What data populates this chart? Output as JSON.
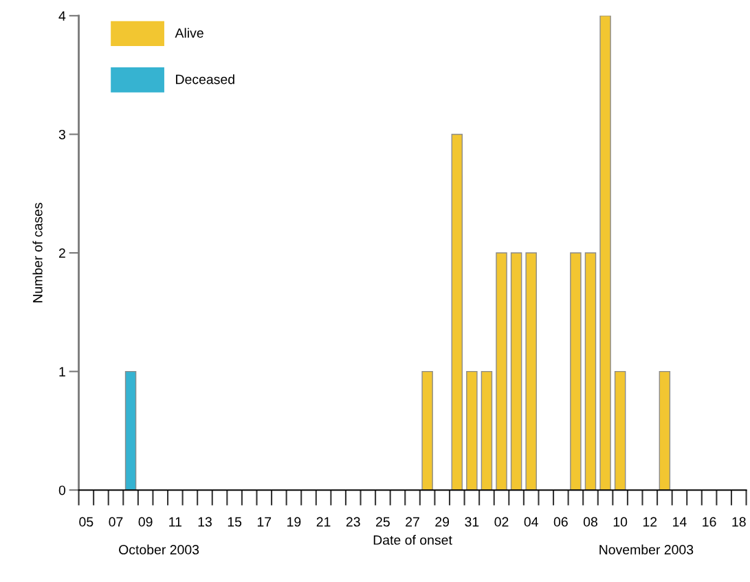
{
  "chart_data": {
    "type": "bar",
    "xlabel": "Date of onset",
    "ylabel": "Number of cases",
    "categories": [
      "05",
      null,
      "07",
      null,
      "09",
      null,
      "11",
      null,
      "13",
      null,
      "15",
      null,
      "17",
      null,
      "19",
      null,
      "21",
      null,
      "23",
      null,
      "25",
      null,
      "27",
      null,
      "29",
      null,
      "31",
      null,
      "02",
      null,
      "04",
      null,
      "06",
      null,
      "08",
      null,
      "10",
      null,
      "12",
      null,
      "14",
      null,
      "16",
      null,
      "18"
    ],
    "series": [
      {
        "name": "Alive",
        "color": "#f2c631",
        "values": [
          0,
          0,
          0,
          0,
          0,
          0,
          0,
          0,
          0,
          0,
          0,
          0,
          0,
          0,
          0,
          0,
          0,
          0,
          0,
          0,
          0,
          0,
          0,
          1,
          0,
          3,
          1,
          1,
          2,
          2,
          2,
          0,
          0,
          2,
          2,
          4,
          1,
          0,
          0,
          1,
          0,
          0,
          0,
          0,
          0
        ]
      },
      {
        "name": "Deceased",
        "color": "#36b3d1",
        "values": [
          0,
          0,
          0,
          1,
          0,
          0,
          0,
          0,
          0,
          0,
          0,
          0,
          0,
          0,
          0,
          0,
          0,
          0,
          0,
          0,
          0,
          0,
          0,
          0,
          0,
          0,
          0,
          0,
          0,
          0,
          0,
          0,
          0,
          0,
          0,
          0,
          0,
          0,
          0,
          0,
          0,
          0,
          0,
          0,
          0
        ]
      }
    ],
    "ylim": [
      0,
      4
    ],
    "yticks": [
      0,
      1,
      2,
      3,
      4
    ],
    "grid": false,
    "legend": "top left",
    "annotations": [
      "October 2003",
      "November 2003"
    ]
  }
}
